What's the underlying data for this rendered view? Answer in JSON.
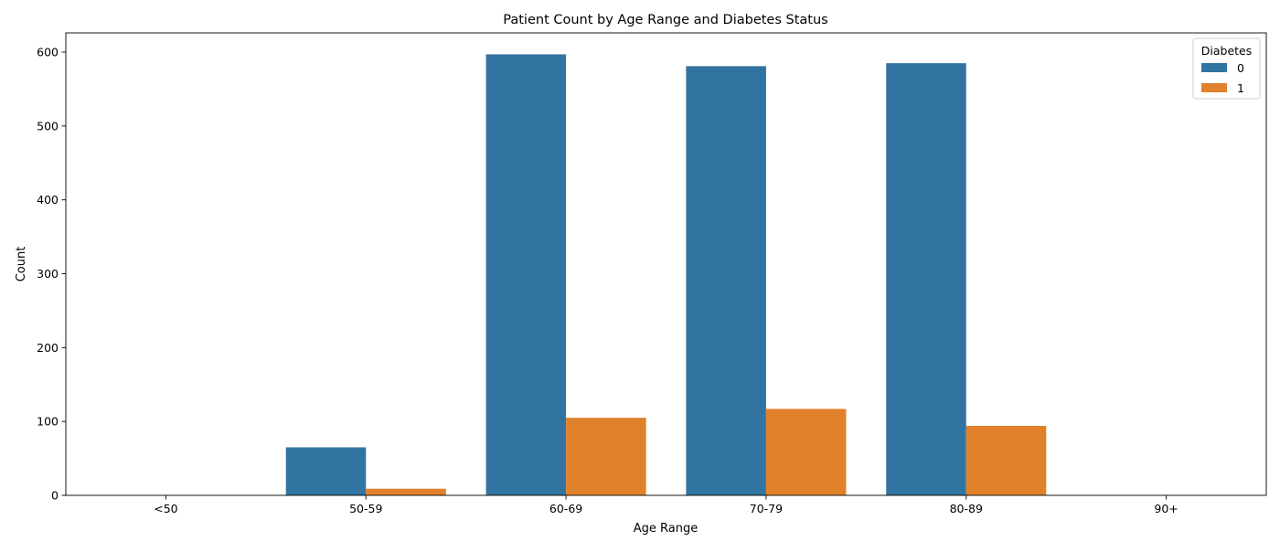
{
  "chart_data": {
    "type": "bar",
    "title": "Patient Count by Age Range and Diabetes Status",
    "xlabel": "Age Range",
    "ylabel": "Count",
    "categories": [
      "<50",
      "50-59",
      "60-69",
      "70-79",
      "80-89",
      "90+"
    ],
    "series": [
      {
        "name": "0",
        "color": "#3274a1",
        "values": [
          0,
          65,
          597,
          581,
          585,
          0
        ]
      },
      {
        "name": "1",
        "color": "#e1812c",
        "values": [
          0,
          9,
          105,
          117,
          94,
          0
        ]
      }
    ],
    "ylim": [
      0,
      626
    ],
    "yticks": [
      0,
      100,
      200,
      300,
      400,
      500,
      600
    ],
    "legend": {
      "title": "Diabetes",
      "placement": "top-right"
    },
    "grid": false
  }
}
